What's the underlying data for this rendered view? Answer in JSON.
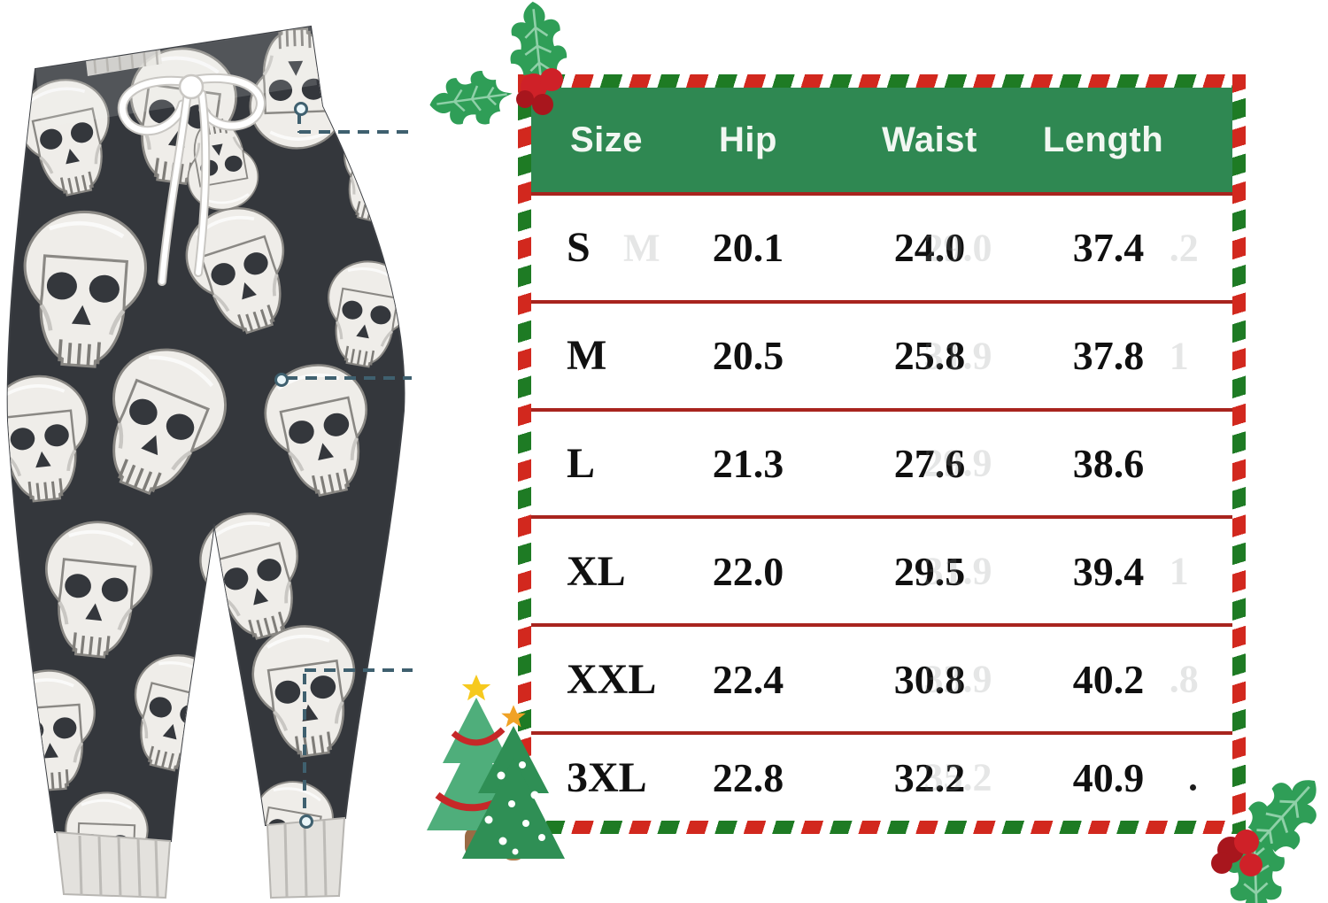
{
  "product": {
    "name": "skull-print jogger sweatpants product photo",
    "pattern_bg": "#34373c",
    "skull_color": "#efede9",
    "drawstring": "#ffffff"
  },
  "annotations": {
    "color": "#3f606f",
    "lines": [
      "waist-measure",
      "hip-measure",
      "length-measure"
    ]
  },
  "table": {
    "columns": [
      "Size",
      "Hip",
      "Waist",
      "Length"
    ],
    "rows": [
      {
        "size": "S",
        "hip": "20.1",
        "waist": "24.0",
        "length": "37.4",
        "ghost_size": "M",
        "ghost_mid": "29.0",
        "ghost_end": ".2"
      },
      {
        "size": "M",
        "hip": "20.5",
        "waist": "25.8",
        "length": "37.8",
        "ghost_mid": "31.9",
        "ghost_end": "1"
      },
      {
        "size": "L",
        "hip": "21.3",
        "waist": "27.6",
        "length": "38.6",
        "ghost_mid": "29.9",
        "ghost_end": ""
      },
      {
        "size": "XL",
        "hip": "22.0",
        "waist": "29.5",
        "length": "39.4",
        "ghost_mid": "31.9",
        "ghost_end": "1"
      },
      {
        "size": "XXL",
        "hip": "22.4",
        "waist": "30.8",
        "length": "40.2",
        "ghost_mid": "33.9",
        "ghost_end": ".8"
      },
      {
        "size": "3XL",
        "hip": "22.8",
        "waist": "32.2",
        "length": "40.9",
        "ghost_mid": "35.2",
        "ghost_end": "",
        "end_dot": true
      }
    ],
    "colors": {
      "header_bg": "#2f8852",
      "header_text": "#f2f7f2",
      "divider": "#a8241e",
      "candy_red": "#d2281e",
      "candy_green": "#1e7b24",
      "ghost": "#8c9191"
    }
  },
  "chart_data": {
    "type": "table",
    "title": "Size chart (inches)",
    "columns": [
      "Size",
      "Hip",
      "Waist",
      "Length"
    ],
    "rows": [
      [
        "S",
        20.1,
        24.0,
        37.4
      ],
      [
        "M",
        20.5,
        25.8,
        37.8
      ],
      [
        "L",
        21.3,
        27.6,
        38.6
      ],
      [
        "XL",
        22.0,
        29.5,
        39.4
      ],
      [
        "XXL",
        22.4,
        30.8,
        40.2
      ],
      [
        "3XL",
        22.8,
        32.2,
        40.9
      ]
    ]
  },
  "decorations": {
    "holly_leaf_green": "#2f9e57",
    "holly_vein": "#8fd0a8",
    "berry_red": "#cf2128",
    "berry_dark": "#a8161d",
    "tree_back": "#4fae7b",
    "tree_front": "#2f8f55",
    "tree_garland": "#c62828",
    "star_yellow": "#f6c91e",
    "star_orange": "#f0a225",
    "trunk": "#9a6b45",
    "trunk2": "#b07c4f",
    "tree_dot": "#ffffff"
  }
}
